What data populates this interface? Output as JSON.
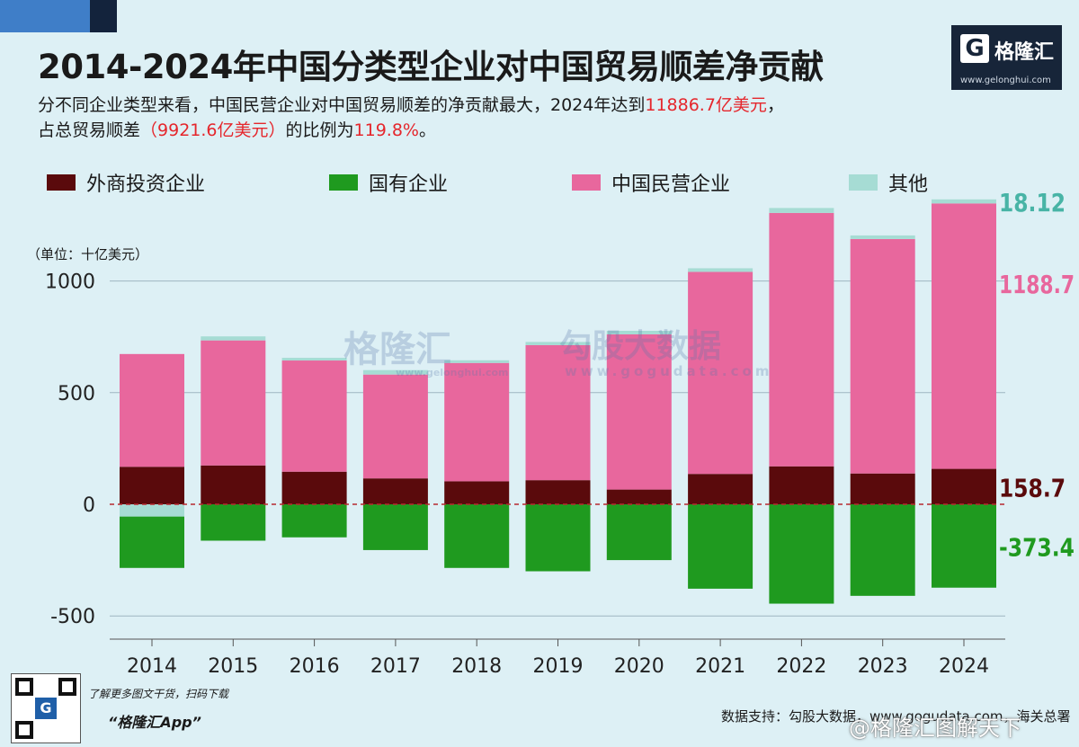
{
  "header": {
    "title": "2014-2024年中国分类型企业对中国贸易顺差净贡献",
    "subtitle_line1_a": "分不同企业类型来看，中国民营企业对中国贸易顺差的净贡献最大，2024年达到",
    "subtitle_line1_b": "11886.7亿美元",
    "subtitle_line1_c": "，",
    "subtitle_line2_a": "占总贸易顺差",
    "subtitle_line2_b": "（9921.6亿美元）",
    "subtitle_line2_c": "的比例为",
    "subtitle_line2_d": "119.8%",
    "subtitle_line2_e": "。"
  },
  "logo": {
    "name": "格隆汇",
    "mark": "G",
    "url": "www.gelonghui.com"
  },
  "watermarks": {
    "brand": "格隆汇",
    "brand_url": "www.gelonghui.com",
    "data_brand": "勾股大数据",
    "data_url": "www.gogudata.com"
  },
  "footer": {
    "promo_line": "了解更多图文干货，扫码下载",
    "app_name": "“格隆汇App”",
    "source": "数据支持：勾股大数据，www.gogudata.com，海关总署",
    "weibo_watermark": "@格隆汇图解天下"
  },
  "colors": {
    "foreign": "#5a0a0c",
    "state": "#1f9a1f",
    "private": "#e8679d",
    "other": "#a6dcd4",
    "zero_line": "#b7282e"
  },
  "chart_data": {
    "type": "bar",
    "stacked": true,
    "unit_label": "（单位：十亿美元）",
    "categories": [
      "2014",
      "2015",
      "2016",
      "2017",
      "2018",
      "2019",
      "2020",
      "2021",
      "2022",
      "2023",
      "2024"
    ],
    "series": [
      {
        "name": "外商投资企业",
        "values": [
          168,
          174,
          146,
          116,
          103,
          108,
          66,
          136,
          170,
          138,
          158.7
        ]
      },
      {
        "name": "国有企业",
        "values": [
          -230,
          -163,
          -148,
          -205,
          -285,
          -300,
          -250,
          -378,
          -445,
          -410,
          -373.4
        ]
      },
      {
        "name": "中国民营企业",
        "values": [
          505,
          560,
          498,
          465,
          530,
          605,
          695,
          905,
          1135,
          1050,
          1188.7
        ]
      },
      {
        "name": "其他",
        "values": [
          -55,
          18,
          12,
          20,
          12,
          14,
          16,
          16,
          22,
          16,
          18.12
        ]
      }
    ],
    "ylim": [
      -500,
      1250
    ],
    "yticks": [
      -500,
      0,
      500,
      1000
    ],
    "grid": true,
    "legend_position": "top",
    "annotations": [
      {
        "text": "18.12",
        "series": "其他",
        "category": "2024",
        "color": "#48b4a6"
      },
      {
        "text": "1188.7",
        "series": "中国民营企业",
        "category": "2024",
        "color": "#e8679d"
      },
      {
        "text": "158.7",
        "series": "外商投资企业",
        "category": "2024",
        "color": "#5a0a0c"
      },
      {
        "text": "-373.4",
        "series": "国有企业",
        "category": "2024",
        "color": "#1f9a1f"
      }
    ]
  }
}
